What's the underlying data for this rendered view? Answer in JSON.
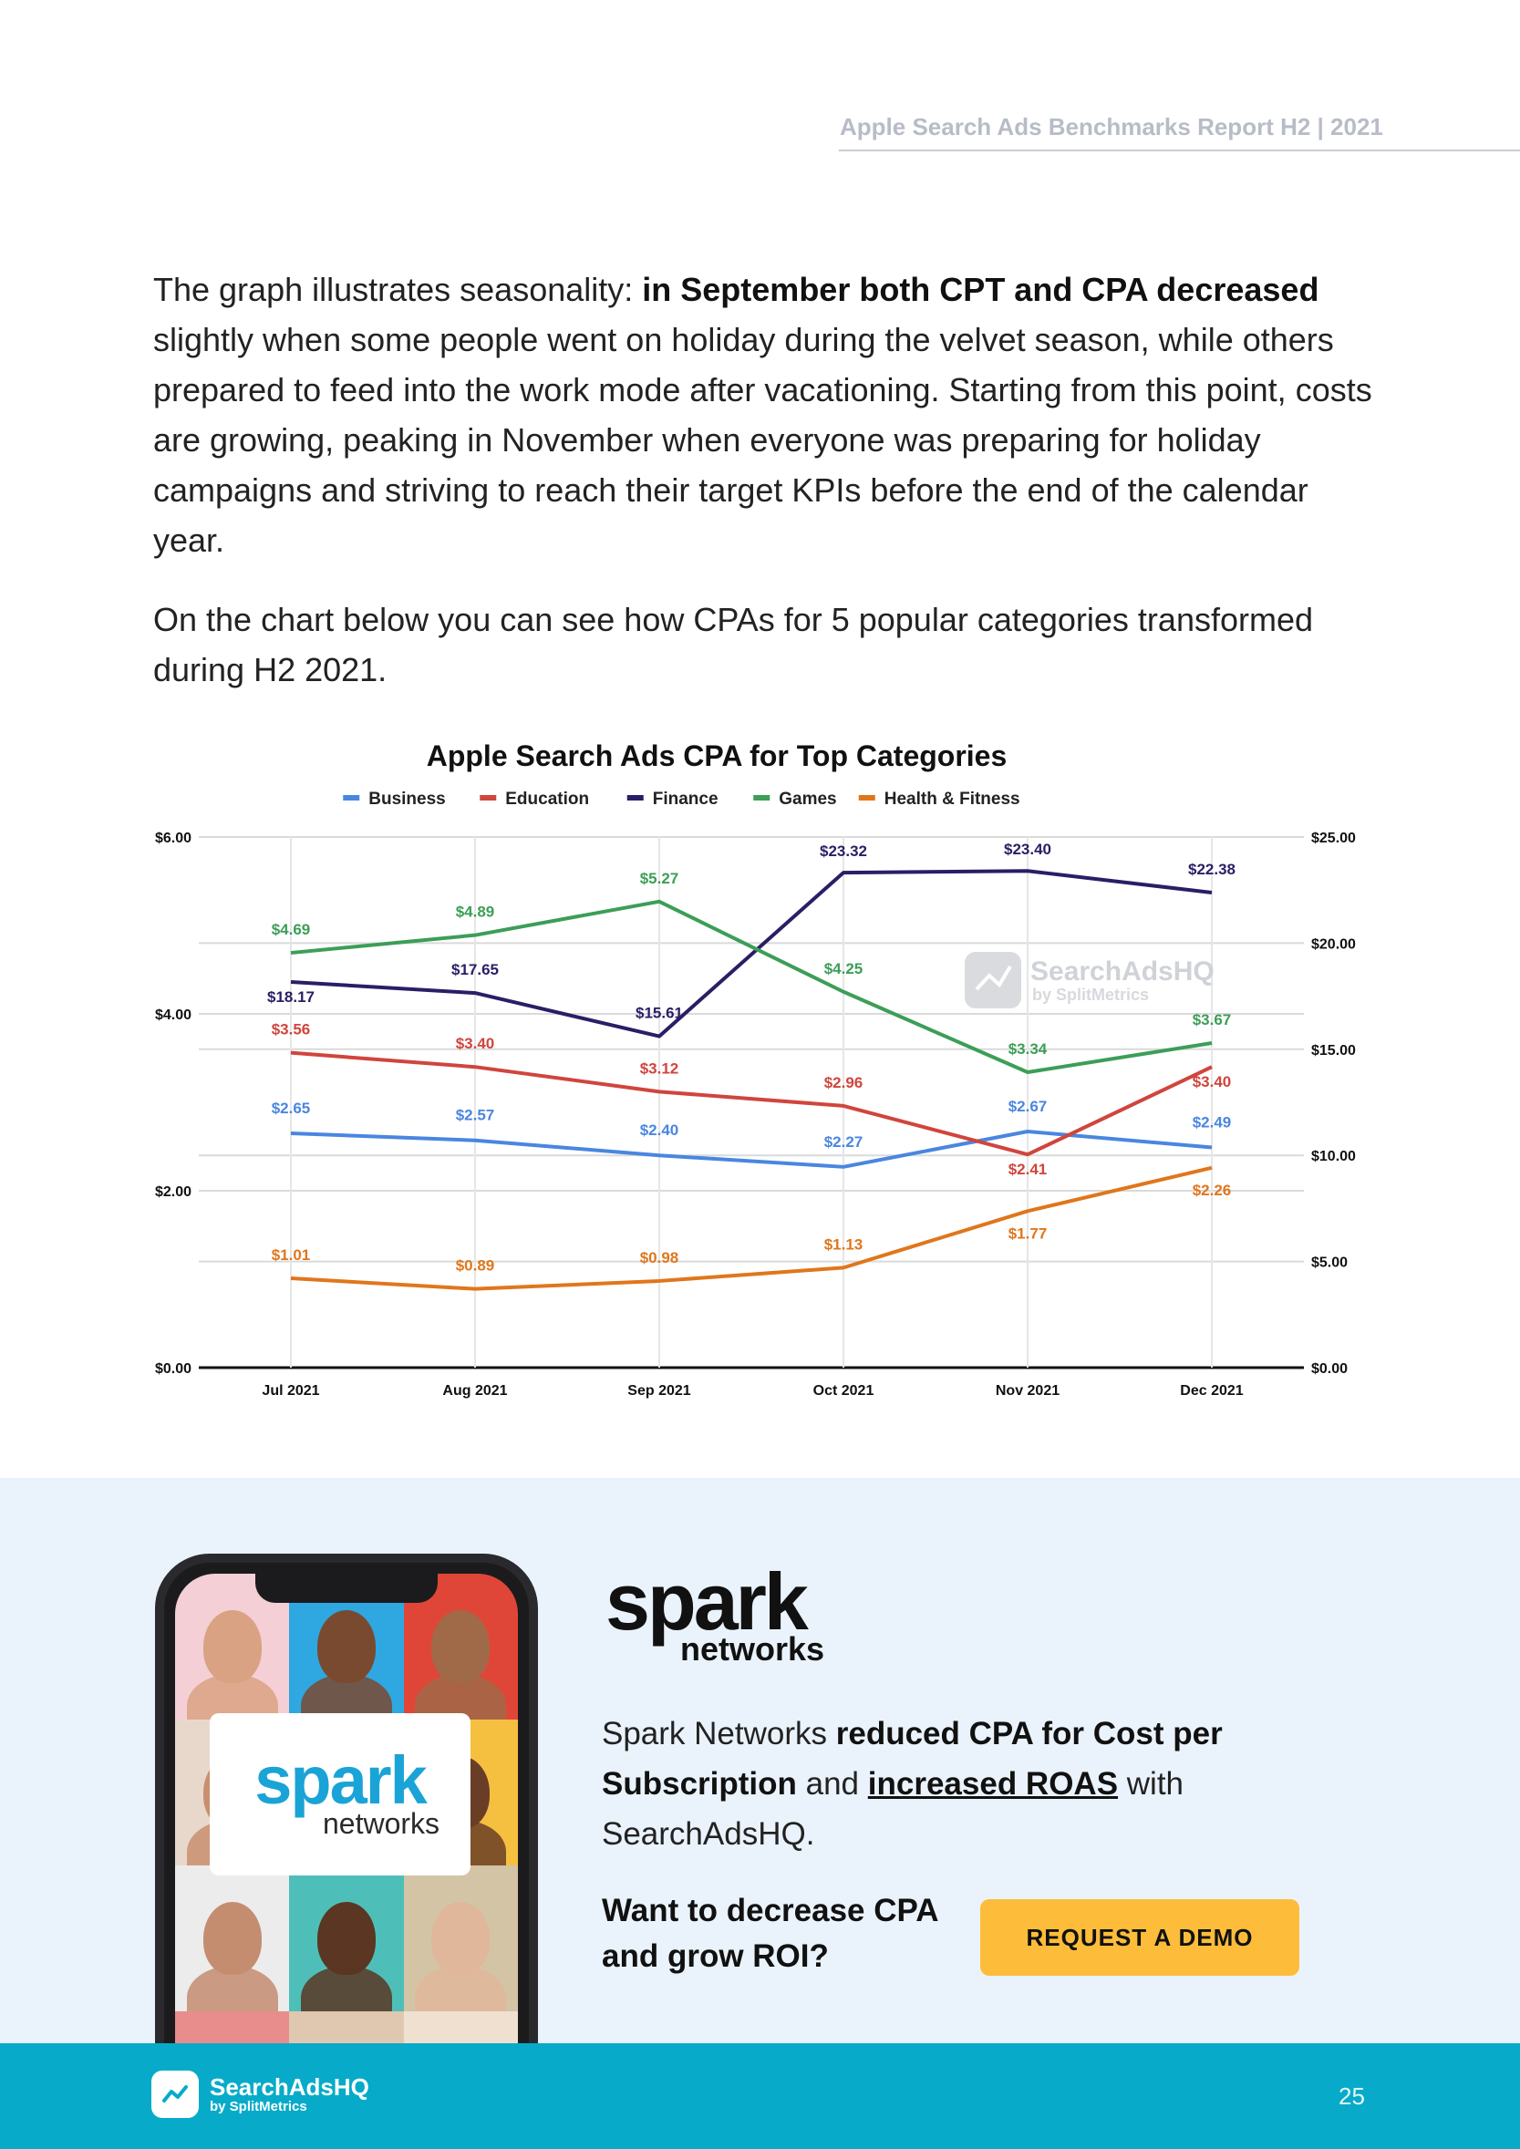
{
  "header": {
    "report_title": "Apple Search Ads Benchmarks Report H2 | 2021"
  },
  "intro": {
    "p1_lead": "The graph illustrates seasonality: ",
    "p1_bold": "in September both CPT and CPA decreased",
    "p1_rest": " slightly when some people went on holiday during the velvet season, while others prepared to feed into the work mode after vacationing. Starting from this point, costs are growing, peaking in November when everyone was preparing for holiday campaigns and striving to reach their target KPIs before the end of the calendar year.",
    "p2": "On the chart below you can see how CPAs for 5 popular categories transformed during H2 2021."
  },
  "chart_data": {
    "type": "line",
    "title": "Apple Search Ads CPA for Top Categories",
    "categories": [
      "Jul 2021",
      "Aug 2021",
      "Sep 2021",
      "Oct 2021",
      "Nov 2021",
      "Dec 2021"
    ],
    "left_axis": {
      "min": 0,
      "max": 6,
      "ticks": [
        "$0.00",
        "$2.00",
        "$4.00",
        "$6.00"
      ]
    },
    "right_axis": {
      "min": 0,
      "max": 25,
      "ticks": [
        "$0.00",
        "$5.00",
        "$10.00",
        "$15.00",
        "$20.00",
        "$25.00"
      ]
    },
    "grid": true,
    "legend_position": "top",
    "watermark": {
      "brand": "SearchAdsHQ",
      "by": "by SplitMetrics"
    },
    "series": [
      {
        "name": "Business",
        "color": "#4a86e0",
        "axis": "left",
        "values": [
          2.65,
          2.57,
          2.4,
          2.27,
          2.67,
          2.49
        ],
        "labels": [
          "$2.65",
          "$2.57",
          "$2.40",
          "$2.27",
          "$2.67",
          "$2.49"
        ]
      },
      {
        "name": "Education",
        "color": "#d0453d",
        "axis": "left",
        "values": [
          3.56,
          3.4,
          3.12,
          2.96,
          2.41,
          3.4
        ],
        "labels": [
          "$3.56",
          "$3.40",
          "$3.12",
          "$2.96",
          "$2.41",
          "$3.40"
        ]
      },
      {
        "name": "Finance",
        "color": "#2c1d66",
        "axis": "right",
        "values": [
          18.17,
          17.65,
          15.61,
          23.32,
          23.4,
          22.38
        ],
        "labels": [
          "$18.17",
          "$17.65",
          "$15.61",
          "$23.32",
          "$23.40",
          "$22.38"
        ]
      },
      {
        "name": "Games",
        "color": "#3c9e57",
        "axis": "left",
        "values": [
          4.69,
          4.89,
          5.27,
          4.25,
          3.34,
          3.67
        ],
        "labels": [
          "$4.69",
          "$4.89",
          "$5.27",
          "$4.25",
          "$3.34",
          "$3.67"
        ]
      },
      {
        "name": "Health & Fitness",
        "color": "#e0761c",
        "axis": "left",
        "values": [
          1.01,
          0.89,
          0.98,
          1.13,
          1.77,
          2.26
        ],
        "labels": [
          "$1.01",
          "$0.89",
          "$0.98",
          "$1.13",
          "$1.77",
          "$2.26"
        ]
      }
    ]
  },
  "promo": {
    "logo_word": "spark",
    "logo_sub": "networks",
    "text_lead": "Spark Networks ",
    "text_bold": "reduced CPA for Cost per Subscription",
    "text_and": " and ",
    "text_link": "increased ROAS",
    "text_tail": " with SearchAdsHQ.",
    "question": "Want to decrease CPA and grow ROI?",
    "cta_label": "REQUEST A DEMO"
  },
  "footer": {
    "brand": "SearchAdsHQ",
    "by": "by SplitMetrics",
    "page_number": "25"
  }
}
